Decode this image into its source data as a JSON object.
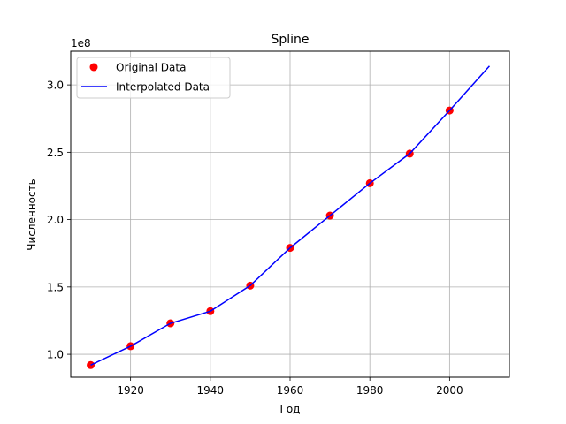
{
  "chart_data": {
    "type": "line",
    "title": "Spline",
    "xlabel": "Год",
    "ylabel": "Численность",
    "y_offset_label": "1e8",
    "xlim": [
      1905,
      2015
    ],
    "ylim": [
      0.83,
      3.25
    ],
    "x_ticks": [
      1920,
      1940,
      1960,
      1980,
      2000
    ],
    "x_tick_labels": [
      "1920",
      "1940",
      "1960",
      "1980",
      "2000"
    ],
    "y_ticks": [
      1.0,
      1.5,
      2.0,
      2.5,
      3.0
    ],
    "y_tick_labels": [
      "1.0",
      "1.5",
      "2.0",
      "2.5",
      "3.0"
    ],
    "grid": true,
    "legend_position": "top-left",
    "series": [
      {
        "name": "Original Data",
        "kind": "scatter",
        "color": "#ff0000",
        "x": [
          1910,
          1920,
          1930,
          1940,
          1950,
          1960,
          1970,
          1980,
          1990,
          2000
        ],
        "y": [
          0.92,
          1.06,
          1.23,
          1.32,
          1.51,
          1.79,
          2.03,
          2.27,
          2.49,
          2.81
        ]
      },
      {
        "name": "Interpolated Data",
        "kind": "line",
        "color": "#0000ff",
        "x": [
          1910,
          1920,
          1930,
          1940,
          1950,
          1960,
          1970,
          1980,
          1990,
          2000,
          2010
        ],
        "y": [
          0.92,
          1.06,
          1.23,
          1.32,
          1.51,
          1.79,
          2.03,
          2.27,
          2.49,
          2.81,
          3.14
        ]
      }
    ]
  }
}
